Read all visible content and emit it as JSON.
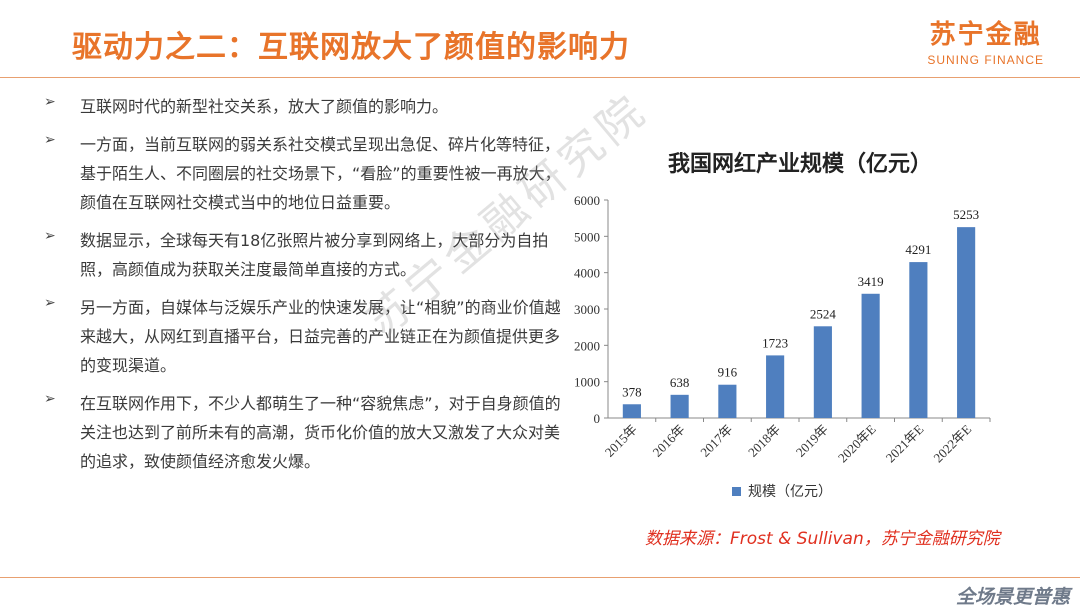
{
  "header": {
    "title": "驱动力之二：互联网放大了颜值的影响力",
    "logo_cn": "苏宁金融",
    "logo_en": "SUNING FINANCE"
  },
  "bullets": [
    "互联网时代的新型社交关系，放大了颜值的影响力。",
    "一方面，当前互联网的弱关系社交模式呈现出急促、碎片化等特征，基于陌生人、不同圈层的社交场景下，“看脸”的重要性被一再放大，颜值在互联网社交模式当中的地位日益重要。",
    "数据显示，全球每天有18亿张照片被分享到网络上，大部分为自拍照，高颜值成为获取关注度最简单直接的方式。",
    "另一方面，自媒体与泛娱乐产业的快速发展，让“相貌”的商业价值越来越大，从网红到直播平台，日益完善的产业链正在为颜值提供更多的变现渠道。",
    "在互联网作用下，不少人都萌生了一种“容貌焦虑”，对于自身颜值的关注也达到了前所未有的高潮，货币化价值的放大又激发了大众对美的追求，致使颜值经济愈发火爆。"
  ],
  "bullet_marker": "➢",
  "watermark": "苏宁金融研究院",
  "chart_data": {
    "type": "bar",
    "title": "我国网红产业规模（亿元）",
    "categories": [
      "2015年",
      "2016年",
      "2017年",
      "2018年",
      "2019年",
      "2020年E",
      "2021年E",
      "2022年E"
    ],
    "series": [
      {
        "name": "规模（亿元）",
        "values": [
          378,
          638,
          916,
          1723,
          2524,
          3419,
          4291,
          5253
        ]
      }
    ],
    "yticks": [
      0,
      1000,
      2000,
      3000,
      4000,
      5000,
      6000
    ],
    "ylim": [
      0,
      6000
    ],
    "legend": "bottom",
    "grid": false,
    "bar_color": "#4f7fbf"
  },
  "source": "数据来源：Frost & Sullivan，苏宁金融研究院",
  "footer_logo": "全场景更普惠"
}
